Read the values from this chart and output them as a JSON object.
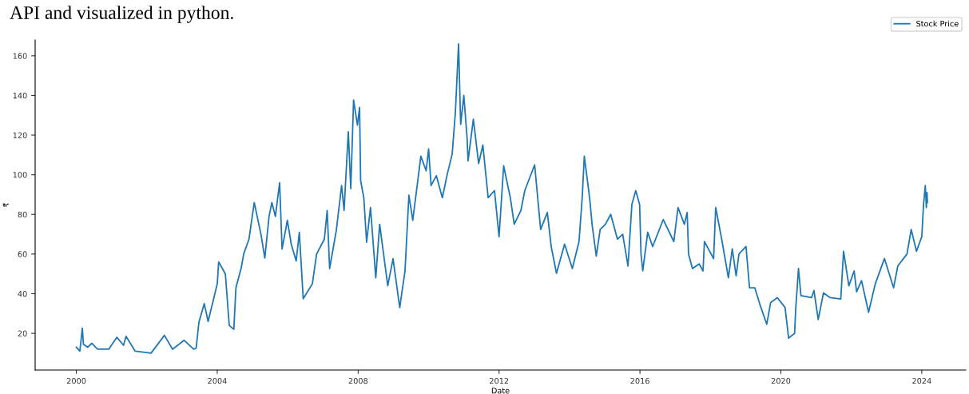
{
  "chart_data": {
    "type": "line",
    "annotations": [
      "API and visualized in python."
    ],
    "xlabel": "Date",
    "ylabel": "₹",
    "x": [
      2000.0,
      2000.1,
      2000.17,
      2000.2,
      2000.32,
      2000.44,
      2000.6,
      2000.92,
      2001.15,
      2001.34,
      2001.41,
      2001.67,
      2002.12,
      2002.5,
      2002.73,
      2003.06,
      2003.33,
      2003.4,
      2003.48,
      2003.63,
      2003.74,
      2004.0,
      2004.04,
      2004.23,
      2004.34,
      2004.47,
      2004.53,
      2004.68,
      2004.75,
      2004.9,
      2005.05,
      2005.24,
      2005.35,
      2005.47,
      2005.55,
      2005.65,
      2005.77,
      2005.84,
      2005.99,
      2006.1,
      2006.24,
      2006.33,
      2006.44,
      2006.7,
      2006.82,
      2007.04,
      2007.12,
      2007.19,
      2007.38,
      2007.53,
      2007.6,
      2007.72,
      2007.79,
      2007.87,
      2007.98,
      2008.04,
      2008.07,
      2008.16,
      2008.24,
      2008.35,
      2008.5,
      2008.61,
      2008.84,
      2008.99,
      2009.18,
      2009.33,
      2009.44,
      2009.55,
      2009.78,
      2009.93,
      2010.0,
      2010.07,
      2010.22,
      2010.39,
      2010.52,
      2010.67,
      2010.76,
      2010.85,
      2010.91,
      2011.0,
      2011.09,
      2011.12,
      2011.27,
      2011.42,
      2011.54,
      2011.69,
      2011.87,
      2012.0,
      2012.13,
      2012.32,
      2012.43,
      2012.62,
      2012.73,
      2013.01,
      2013.18,
      2013.37,
      2013.48,
      2013.63,
      2013.86,
      2014.08,
      2014.27,
      2014.36,
      2014.42,
      2014.57,
      2014.64,
      2014.76,
      2014.87,
      2015.02,
      2015.17,
      2015.36,
      2015.51,
      2015.66,
      2015.77,
      2015.88,
      2015.99,
      2016.03,
      2016.08,
      2016.22,
      2016.36,
      2016.66,
      2016.96,
      2017.08,
      2017.26,
      2017.34,
      2017.38,
      2017.49,
      2017.68,
      2017.79,
      2017.83,
      2018.09,
      2018.15,
      2018.32,
      2018.51,
      2018.62,
      2018.73,
      2018.81,
      2019.01,
      2019.11,
      2019.26,
      2019.41,
      2019.6,
      2019.71,
      2019.9,
      2020.12,
      2020.22,
      2020.39,
      2020.42,
      2020.5,
      2020.57,
      2020.87,
      2020.94,
      2021.06,
      2021.21,
      2021.4,
      2021.7,
      2021.78,
      2021.93,
      2022.08,
      2022.15,
      2022.29,
      2022.49,
      2022.68,
      2022.94,
      2023.2,
      2023.32,
      2023.58,
      2023.7,
      2023.85,
      2024.0,
      2024.05,
      2024.1,
      2024.13,
      2024.15,
      2024.16
    ],
    "series": [
      {
        "name": "Stock Price",
        "color": "#1f77b4",
        "values": [
          13,
          11,
          22.6,
          14.5,
          13,
          15,
          12,
          12,
          18,
          14,
          18.5,
          11,
          10,
          19,
          12,
          16.5,
          12,
          12.5,
          25.7,
          35,
          26,
          45,
          56,
          50,
          24,
          22,
          43,
          53,
          60,
          67.5,
          86,
          70,
          58,
          79,
          86,
          79,
          96,
          62.5,
          77,
          65,
          56.5,
          71,
          37.5,
          45,
          60,
          67.5,
          82,
          52.7,
          72,
          94.6,
          82,
          121.7,
          93,
          137.7,
          125,
          134,
          97,
          88.4,
          66,
          83.5,
          48,
          75,
          44,
          57.7,
          33,
          51.5,
          89.7,
          77,
          109.4,
          102,
          113,
          94.6,
          99.5,
          88.4,
          99.5,
          110.6,
          131.6,
          166,
          125.4,
          140,
          119,
          107,
          128,
          105.7,
          115,
          88.4,
          92,
          68.7,
          104.5,
          88.4,
          75,
          82,
          92,
          105,
          72.4,
          81,
          63.8,
          50.3,
          65,
          52.7,
          66.3,
          88.4,
          109.4,
          88.4,
          75,
          59,
          72.4,
          75,
          80,
          67.5,
          70,
          54,
          85,
          92,
          85,
          60,
          51.5,
          71,
          63.8,
          77.4,
          66.3,
          83.5,
          75,
          81,
          60,
          52.7,
          55,
          51.5,
          66.3,
          57.7,
          83.5,
          67.5,
          48,
          62.6,
          49,
          60,
          63.8,
          43,
          43,
          34.3,
          24.6,
          35.6,
          38,
          33,
          17.6,
          20,
          32,
          52.7,
          39,
          38,
          41.6,
          27,
          40.4,
          38,
          37.3,
          61.4,
          44,
          51.5,
          41,
          46.6,
          30.6,
          45,
          57.7,
          43,
          54,
          60,
          72.4,
          61.4,
          68.7,
          84.8,
          94.6,
          83.5,
          91,
          86
        ]
      }
    ],
    "xlim": [
      1998.83,
      2025.25
    ],
    "xticks": [
      2000,
      2004,
      2008,
      2012,
      2016,
      2020,
      2024
    ],
    "ylim": [
      1.5,
      168
    ],
    "yticks": [
      20,
      40,
      60,
      80,
      100,
      120,
      140,
      160
    ],
    "legend": "top right",
    "grid": false,
    "marker": "none",
    "line_style": "solid"
  }
}
